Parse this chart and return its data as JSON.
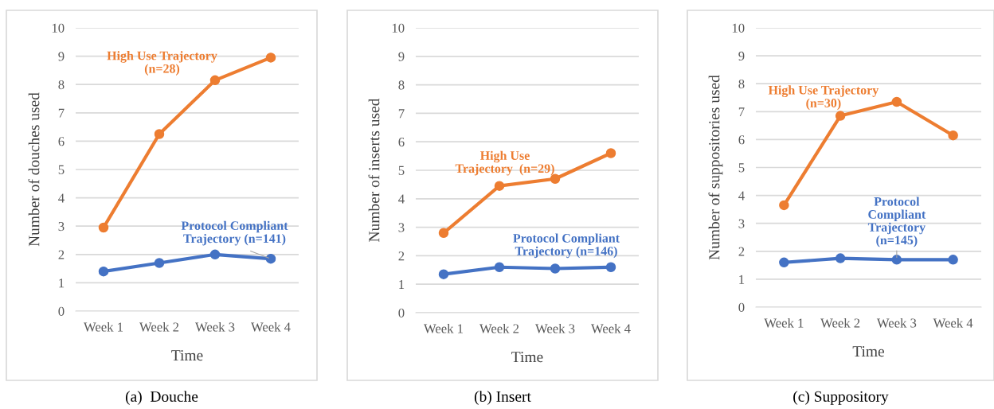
{
  "chart_data": [
    {
      "type": "line",
      "title": "(a)  Douche",
      "xlabel": "Time",
      "ylabel": "Number of douches used",
      "categories": [
        "Week 1",
        "Week 2",
        "Week 3",
        "Week 4"
      ],
      "ylim": [
        0,
        10
      ],
      "yticks": [
        0,
        1,
        2,
        3,
        4,
        5,
        6,
        7,
        8,
        9,
        10
      ],
      "grid": "y",
      "marker": "circle",
      "line_style": "solid",
      "legend": false,
      "series": [
        {
          "name": "High Use Trajectory\n(n=28)",
          "color": "#ed7d31",
          "values": [
            2.95,
            6.25,
            8.15,
            8.95
          ]
        },
        {
          "name": "Protocol Compliant\nTrajectory (n=141)",
          "color": "#4472c4",
          "values": [
            1.4,
            1.7,
            2.0,
            1.85
          ]
        }
      ]
    },
    {
      "type": "line",
      "title": "(b) Insert",
      "xlabel": "Time",
      "ylabel": "Number of inserts used",
      "categories": [
        "Week 1",
        "Week 2",
        "Week 3",
        "Week 4"
      ],
      "ylim": [
        0,
        10
      ],
      "yticks": [
        0,
        1,
        2,
        3,
        4,
        5,
        6,
        7,
        8,
        9,
        10
      ],
      "grid": "y",
      "marker": "circle",
      "line_style": "solid",
      "legend": false,
      "series": [
        {
          "name": "High Use\nTrajectory  (n=29)",
          "color": "#ed7d31",
          "values": [
            2.8,
            4.45,
            4.7,
            5.6
          ]
        },
        {
          "name": "Protocol Compliant\nTrajectory (n=146)",
          "color": "#4472c4",
          "values": [
            1.35,
            1.6,
            1.55,
            1.6
          ]
        }
      ]
    },
    {
      "type": "line",
      "title": "(c) Suppository",
      "xlabel": "Time",
      "ylabel": "Number of suppositories used",
      "categories": [
        "Week 1",
        "Week 2",
        "Week 3",
        "Week 4"
      ],
      "ylim": [
        0,
        10
      ],
      "yticks": [
        0,
        1,
        2,
        3,
        4,
        5,
        6,
        7,
        8,
        9,
        10
      ],
      "grid": "y",
      "marker": "circle",
      "line_style": "solid",
      "legend": false,
      "series": [
        {
          "name": "High Use Trajectory\n(n=30)",
          "color": "#ed7d31",
          "values": [
            3.65,
            6.85,
            7.35,
            6.15
          ]
        },
        {
          "name": "Protocol\nCompliant\nTrajectory\n(n=145)",
          "color": "#4472c4",
          "values": [
            1.6,
            1.75,
            1.7,
            1.7
          ]
        }
      ]
    }
  ]
}
